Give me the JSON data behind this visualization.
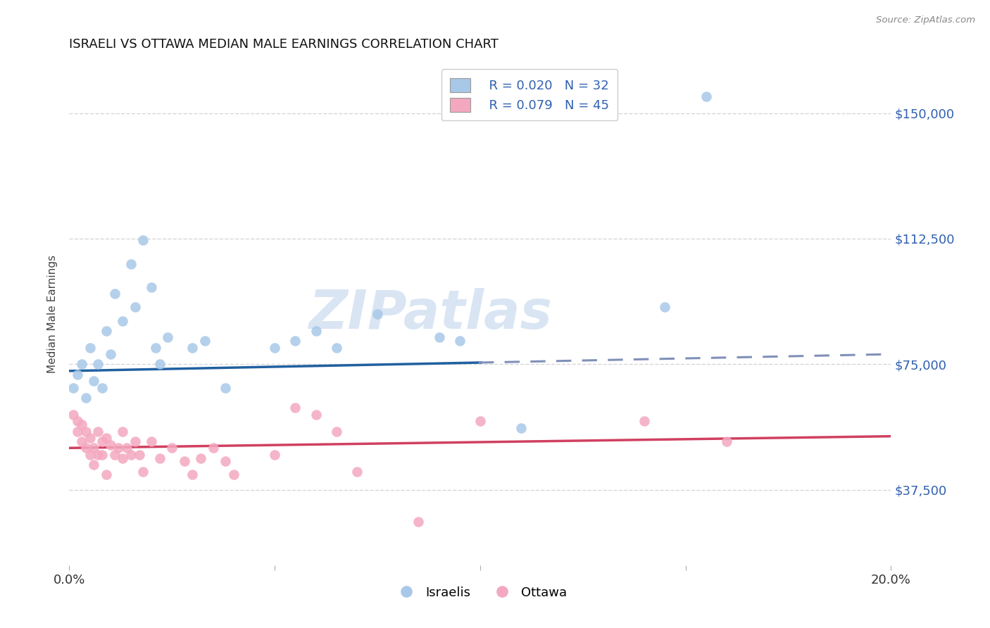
{
  "title": "ISRAELI VS OTTAWA MEDIAN MALE EARNINGS CORRELATION CHART",
  "source": "Source: ZipAtlas.com",
  "ylabel": "Median Male Earnings",
  "xlim": [
    0.0,
    0.2
  ],
  "ylim": [
    15000,
    165000
  ],
  "yticks": [
    37500,
    75000,
    112500,
    150000
  ],
  "ytick_labels": [
    "$37,500",
    "$75,000",
    "$112,500",
    "$150,000"
  ],
  "xticks": [
    0.0,
    0.05,
    0.1,
    0.15,
    0.2
  ],
  "xtick_labels": [
    "0.0%",
    "",
    "",
    "",
    "20.0%"
  ],
  "legend_r_blue": "R = 0.020",
  "legend_n_blue": "N = 32",
  "legend_r_pink": "R = 0.079",
  "legend_n_pink": "N = 45",
  "legend_label_blue": "Israelis",
  "legend_label_pink": "Ottawa",
  "blue_color": "#A8C8E8",
  "pink_color": "#F4A8C0",
  "blue_line_color": "#2060A0",
  "pink_line_color": "#D04060",
  "blue_dash_color": "#8090B8",
  "watermark": "ZIPatlas",
  "watermark_color": "#C5D8ED",
  "israelis_x": [
    0.001,
    0.002,
    0.003,
    0.004,
    0.005,
    0.006,
    0.007,
    0.008,
    0.009,
    0.01,
    0.011,
    0.013,
    0.015,
    0.016,
    0.018,
    0.02,
    0.021,
    0.022,
    0.024,
    0.03,
    0.033,
    0.038,
    0.05,
    0.055,
    0.06,
    0.065,
    0.075,
    0.09,
    0.095,
    0.11,
    0.145,
    0.155
  ],
  "israelis_y": [
    68000,
    72000,
    75000,
    65000,
    80000,
    70000,
    75000,
    68000,
    85000,
    78000,
    96000,
    88000,
    105000,
    92000,
    112000,
    98000,
    80000,
    75000,
    83000,
    80000,
    82000,
    68000,
    80000,
    82000,
    85000,
    80000,
    90000,
    83000,
    82000,
    56000,
    92000,
    155000
  ],
  "ottawa_x": [
    0.001,
    0.002,
    0.002,
    0.003,
    0.003,
    0.004,
    0.004,
    0.005,
    0.005,
    0.006,
    0.006,
    0.007,
    0.007,
    0.008,
    0.008,
    0.009,
    0.009,
    0.01,
    0.011,
    0.012,
    0.013,
    0.013,
    0.014,
    0.015,
    0.016,
    0.017,
    0.018,
    0.02,
    0.022,
    0.025,
    0.028,
    0.03,
    0.032,
    0.035,
    0.038,
    0.04,
    0.05,
    0.055,
    0.06,
    0.065,
    0.07,
    0.085,
    0.1,
    0.14,
    0.16
  ],
  "ottawa_y": [
    60000,
    58000,
    55000,
    52000,
    57000,
    50000,
    55000,
    48000,
    53000,
    50000,
    45000,
    55000,
    48000,
    52000,
    48000,
    42000,
    53000,
    51000,
    48000,
    50000,
    47000,
    55000,
    50000,
    48000,
    52000,
    48000,
    43000,
    52000,
    47000,
    50000,
    46000,
    42000,
    47000,
    50000,
    46000,
    42000,
    48000,
    62000,
    60000,
    55000,
    43000,
    28000,
    58000,
    58000,
    52000
  ]
}
